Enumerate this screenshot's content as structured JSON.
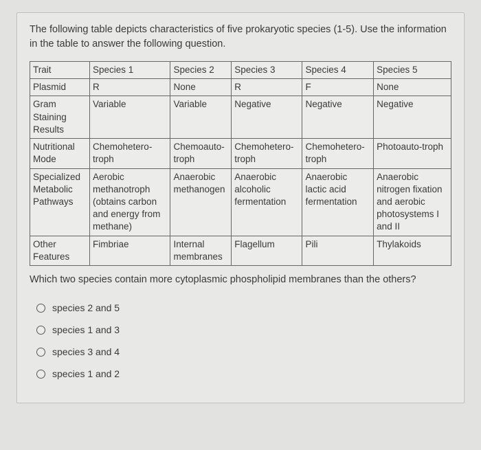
{
  "intro": "The following table depicts characteristics of five prokaryotic species (1-5). Use the information in the table to answer the following question.",
  "table": {
    "rows": [
      [
        "Trait",
        "Species 1",
        "Species 2",
        "Species 3",
        "Species 4",
        "Species 5"
      ],
      [
        "Plasmid",
        "R",
        "None",
        "R",
        "F",
        "None"
      ],
      [
        "Gram Staining Results",
        "Variable",
        "Variable",
        "Negative",
        "Negative",
        "Negative"
      ],
      [
        "Nutritional Mode",
        "Chemohetero-troph",
        "Chemoauto-troph",
        "Chemohetero-troph",
        "Chemohetero-troph",
        "Photoauto-troph"
      ],
      [
        "Specialized Metabolic Pathways",
        "Aerobic methanotroph (obtains carbon and energy from methane)",
        "Anaerobic methanogen",
        "Anaerobic alcoholic fermentation",
        "Anaerobic lactic acid fermentation",
        "Anaerobic nitrogen fixation and aerobic photosystems I and II"
      ],
      [
        "Other Features",
        "Fimbriae",
        "Internal membranes",
        "Flagellum",
        "Pili",
        "Thylakoids"
      ]
    ]
  },
  "question": "Which two species contain more cytoplasmic phospholipid membranes than the others?",
  "options": [
    "species 2 and 5",
    "species 1 and 3",
    "species 3 and 4",
    "species 1 and 2"
  ],
  "colors": {
    "page_bg": "#e2e2e0",
    "panel_bg": "#e8e8e6",
    "border": "#666",
    "text": "#3a3a3a"
  }
}
